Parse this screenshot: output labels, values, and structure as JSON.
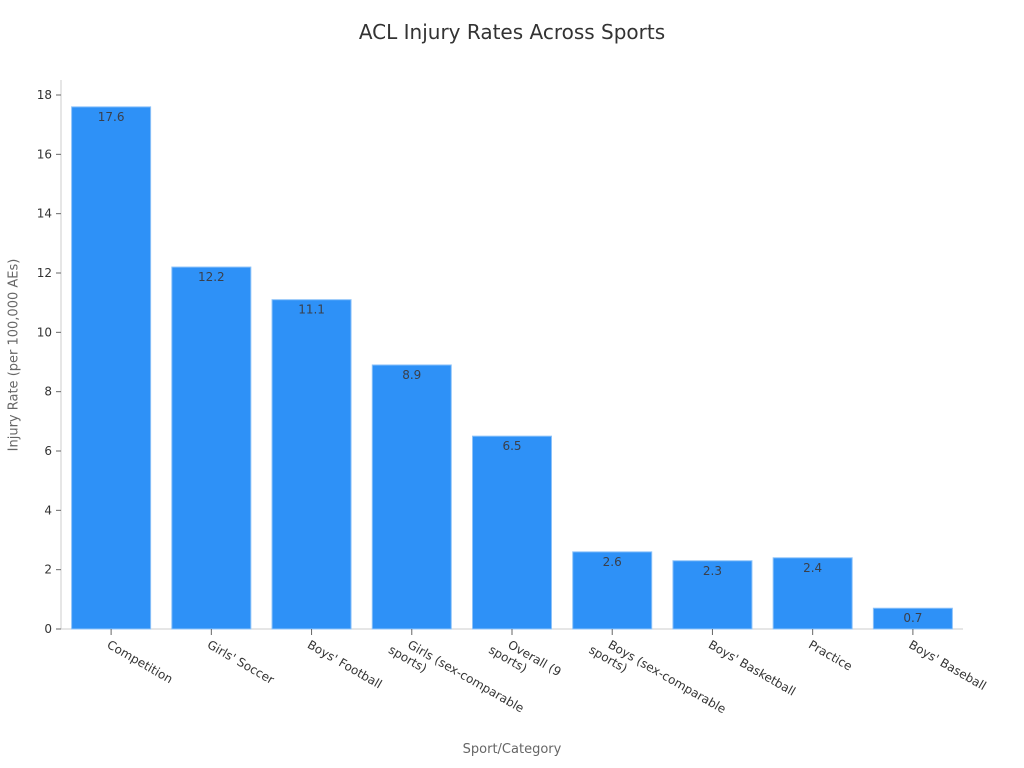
{
  "chart_data": {
    "type": "bar",
    "title": "ACL Injury Rates Across Sports",
    "xlabel": "Sport/Category",
    "ylabel": "Injury Rate (per 100,000 AEs)",
    "categories": [
      "Competition",
      "Girls' Soccer",
      "Boys' Football",
      "Girls (sex-comparable sports)",
      "Overall (9 sports)",
      "Boys (sex-comparable sports)",
      "Boys' Basketball",
      "Practice",
      "Boys' Baseball"
    ],
    "category_label_lines": [
      [
        "Competition"
      ],
      [
        "Girls' Soccer"
      ],
      [
        "Boys' Football"
      ],
      [
        "Girls (sex-comparable",
        "sports)"
      ],
      [
        "Overall (9",
        "sports)"
      ],
      [
        "Boys (sex-comparable",
        "sports)"
      ],
      [
        "Boys' Basketball"
      ],
      [
        "Practice"
      ],
      [
        "Boys' Baseball"
      ]
    ],
    "values": [
      17.6,
      12.2,
      11.1,
      8.9,
      6.5,
      2.6,
      2.3,
      2.4,
      0.7
    ],
    "value_labels": [
      "17.6",
      "12.2",
      "11.1",
      "8.9",
      "6.5",
      "2.6",
      "2.3",
      "2.4",
      "0.7"
    ],
    "ylim": [
      0,
      18.5
    ],
    "yticks": [
      0,
      2,
      4,
      6,
      8,
      10,
      12,
      14,
      16,
      18
    ],
    "grid": false,
    "legend": null,
    "bar_color": "#2e91f7"
  }
}
